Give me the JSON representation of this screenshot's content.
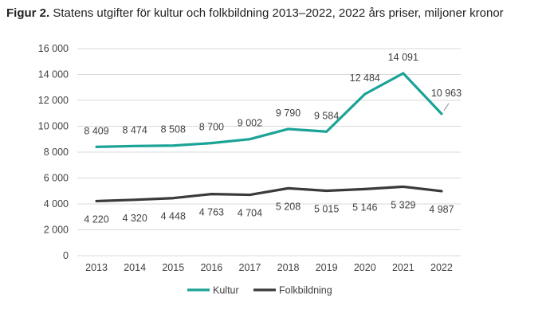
{
  "title_prefix": "Figur 2.",
  "title_text": "Statens utgifter för kultur och folkbildning 2013–2022, 2022 års priser, miljoner kronor",
  "chart_data": {
    "type": "line",
    "title": "Statens utgifter för kultur och folkbildning 2013–2022, 2022 års priser, miljoner kronor",
    "categories": [
      "2013",
      "2014",
      "2015",
      "2016",
      "2017",
      "2018",
      "2019",
      "2020",
      "2021",
      "2022"
    ],
    "ylim": [
      0,
      16000
    ],
    "yticks": [
      0,
      2000,
      4000,
      6000,
      8000,
      10000,
      12000,
      14000,
      16000
    ],
    "ytick_labels": [
      "0",
      "2 000",
      "4 000",
      "6 000",
      "8 000",
      "10 000",
      "12 000",
      "14 000",
      "16 000"
    ],
    "grid": true,
    "legend": "bottom",
    "series": [
      {
        "name": "Kultur",
        "color": "#1aa396",
        "values": [
          8409,
          8474,
          8508,
          8700,
          9002,
          9790,
          9584,
          12484,
          14091,
          10963
        ],
        "labels": [
          "8 409",
          "8 474",
          "8 508",
          "8 700",
          "9 002",
          "9 790",
          "9 584",
          "12 484",
          "14 091",
          "10 963"
        ]
      },
      {
        "name": "Folkbildning",
        "color": "#3a3a3a",
        "values": [
          4220,
          4320,
          4448,
          4763,
          4704,
          5208,
          5015,
          5146,
          5329,
          4987
        ],
        "labels": [
          "4 220",
          "4 320",
          "4 448",
          "4 763",
          "4 704",
          "5 208",
          "5 015",
          "5 146",
          "5 329",
          "4 987"
        ]
      }
    ]
  }
}
